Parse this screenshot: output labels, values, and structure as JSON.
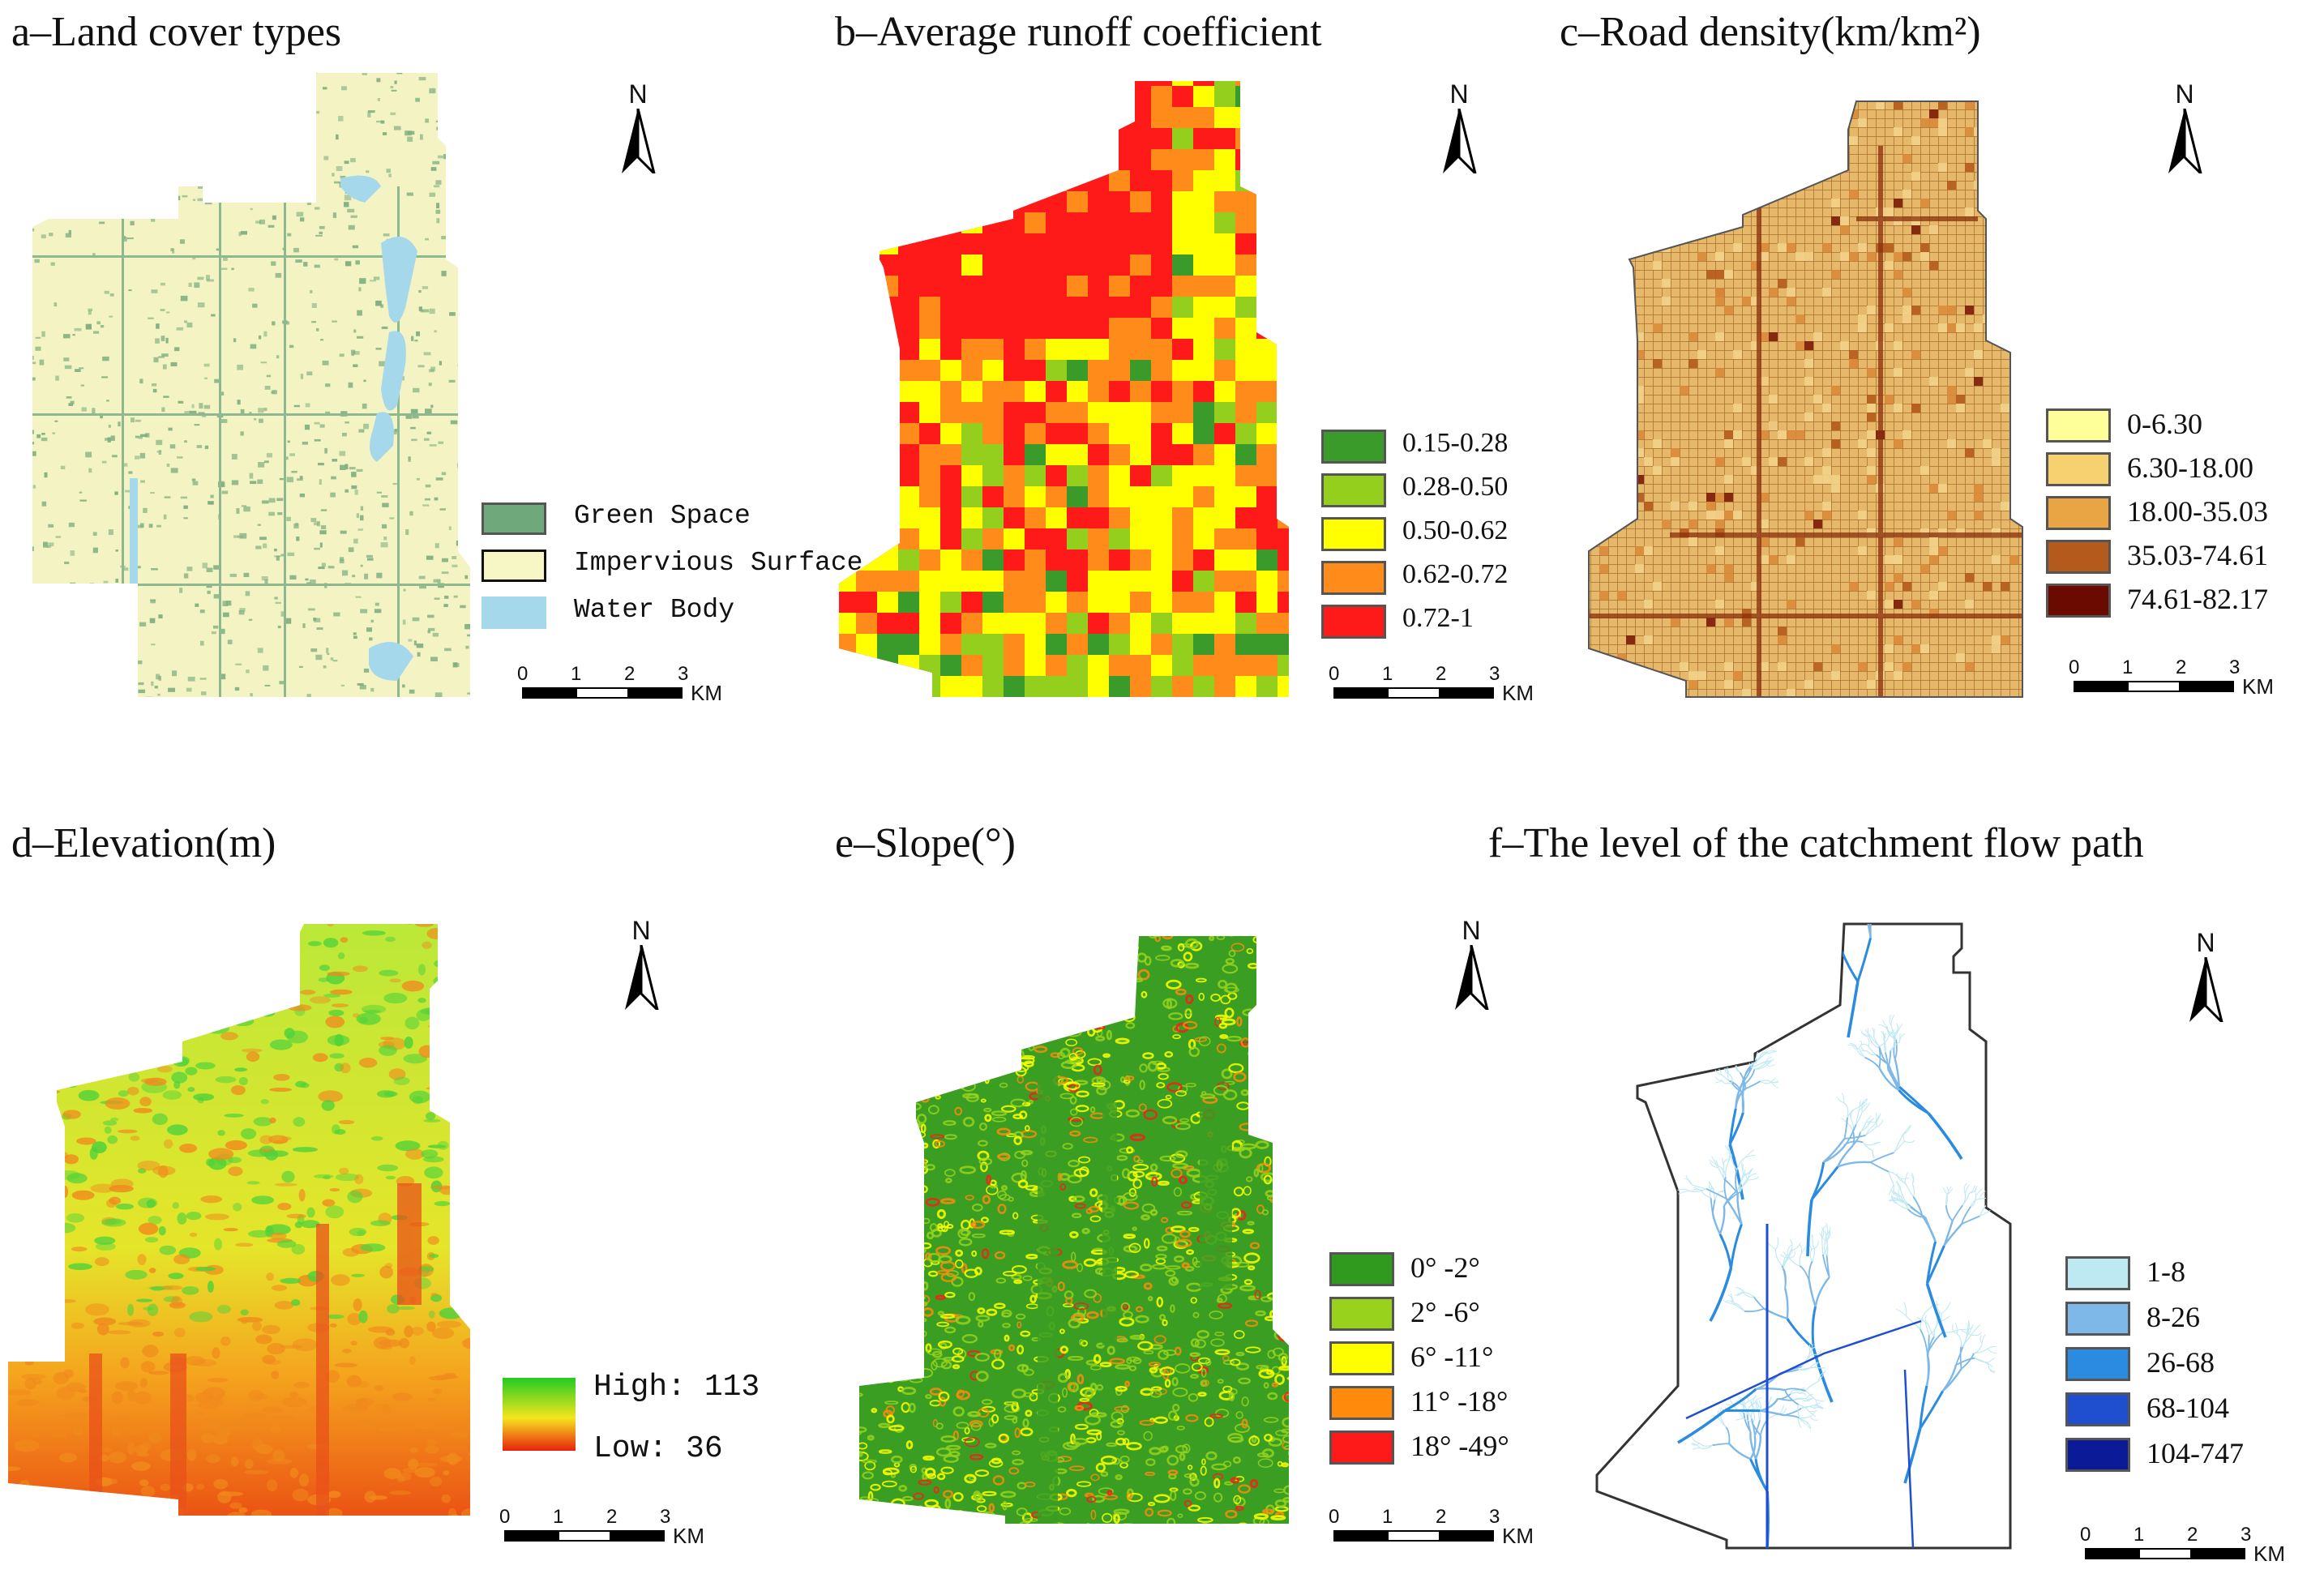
{
  "panels": {
    "a": {
      "title": "a–Land cover types",
      "legend": [
        {
          "label": "Green Space",
          "color": "#6fa87a"
        },
        {
          "label": "Impervious Surface",
          "color": "#f7f7c6"
        },
        {
          "label": "Water Body",
          "color": "#a6d8ec"
        }
      ]
    },
    "b": {
      "title": "b–Average runoff coefficient",
      "legend": [
        {
          "label": "0.15-0.28",
          "color": "#3a9a2a"
        },
        {
          "label": "0.28-0.50",
          "color": "#93cf1c"
        },
        {
          "label": "0.50-0.62",
          "color": "#ffff00"
        },
        {
          "label": "0.62-0.72",
          "color": "#ff8c1a"
        },
        {
          "label": "0.72-1",
          "color": "#ff1a1a"
        }
      ]
    },
    "c": {
      "title": "c–Road density(km/km²)",
      "legend": [
        {
          "label": "0-6.30",
          "color": "#ffff99"
        },
        {
          "label": "6.30-18.00",
          "color": "#f7d070"
        },
        {
          "label": "18.00-35.03",
          "color": "#e9a443"
        },
        {
          "label": "35.03-74.61",
          "color": "#b35a1c"
        },
        {
          "label": "74.61-82.17",
          "color": "#6b0a00"
        }
      ]
    },
    "d": {
      "title": "d–Elevation(m)",
      "legend": {
        "high_label": "High: 113",
        "low_label": "Low: 36",
        "high_color": "#22cc22",
        "mid_color": "#f5e51e",
        "low_color": "#e8220e"
      }
    },
    "e": {
      "title": "e–Slope(°)",
      "legend": [
        {
          "label": "0° -2°",
          "color": "#2f9a1e"
        },
        {
          "label": "2° -6°",
          "color": "#98d21c"
        },
        {
          "label": "6° -11°",
          "color": "#ffff00"
        },
        {
          "label": "11° -18°",
          "color": "#ff8a0c"
        },
        {
          "label": "18° -49°",
          "color": "#ff1a1a"
        }
      ]
    },
    "f": {
      "title": "f–The level of the catchment flow path",
      "legend": [
        {
          "label": "1-8",
          "color": "#bfe9f2"
        },
        {
          "label": "8-26",
          "color": "#7db8e8"
        },
        {
          "label": "26-68",
          "color": "#2a8be0"
        },
        {
          "label": "68-104",
          "color": "#1f4fcf"
        },
        {
          "label": "104-747",
          "color": "#0b1a96"
        }
      ]
    }
  },
  "north_label": "N",
  "scalebar": {
    "ticks": [
      "0",
      "1",
      "2",
      "3"
    ],
    "unit": "KM"
  }
}
